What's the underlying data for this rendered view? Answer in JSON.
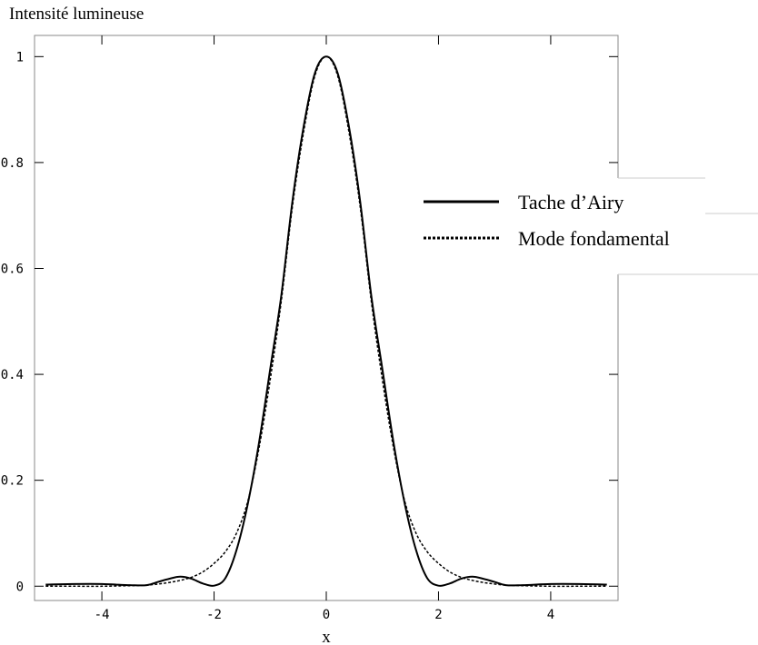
{
  "chart_data": {
    "type": "line",
    "title": "Intensité lumineuse",
    "xlabel": "x",
    "ylabel": "",
    "xlim": [
      -5.2,
      5.2
    ],
    "ylim": [
      -0.027,
      1.04
    ],
    "x_ticks": [
      -4,
      -2,
      0,
      2,
      4
    ],
    "x_tick_labels": [
      "-4",
      "-2",
      "0",
      "2",
      "4"
    ],
    "y_ticks": [
      0,
      0.2,
      0.4,
      0.6,
      0.8,
      1
    ],
    "y_tick_labels": [
      "0",
      "0.2",
      "0.4",
      "0.6",
      "0.8",
      "1"
    ],
    "legend_position": "right",
    "grid": false,
    "x": [
      -5,
      -4.5,
      -4,
      -3.5,
      -3.2,
      -3,
      -2.8,
      -2.6,
      -2.4,
      -2.2,
      -2,
      -1.8,
      -1.6,
      -1.4,
      -1.2,
      -1,
      -0.8,
      -0.6,
      -0.4,
      -0.2,
      0,
      0.2,
      0.4,
      0.6,
      0.8,
      1,
      1.2,
      1.4,
      1.6,
      1.8,
      2,
      2.2,
      2.4,
      2.6,
      2.8,
      3,
      3.2,
      3.5,
      4,
      4.5,
      5
    ],
    "series": [
      {
        "name": "Tache d’Airy",
        "style": "solid",
        "values": [
          0.003,
          0.004,
          0.004,
          0.002,
          0.002,
          0.008,
          0.014,
          0.018,
          0.014,
          0.005,
          0.001,
          0.015,
          0.068,
          0.155,
          0.27,
          0.41,
          0.55,
          0.73,
          0.87,
          0.97,
          1.0,
          0.97,
          0.87,
          0.73,
          0.55,
          0.41,
          0.27,
          0.155,
          0.068,
          0.015,
          0.001,
          0.005,
          0.014,
          0.018,
          0.014,
          0.008,
          0.002,
          0.002,
          0.004,
          0.004,
          0.003
        ]
      },
      {
        "name": "Mode fondamental",
        "style": "dotted",
        "values": [
          0.0,
          0.0,
          0.0,
          0.001,
          0.002,
          0.004,
          0.007,
          0.011,
          0.017,
          0.027,
          0.043,
          0.065,
          0.1,
          0.16,
          0.26,
          0.39,
          0.54,
          0.72,
          0.86,
          0.965,
          1.0,
          0.965,
          0.86,
          0.72,
          0.54,
          0.39,
          0.26,
          0.16,
          0.1,
          0.065,
          0.043,
          0.027,
          0.017,
          0.011,
          0.007,
          0.004,
          0.002,
          0.001,
          0.0,
          0.0,
          0.0
        ]
      }
    ]
  }
}
